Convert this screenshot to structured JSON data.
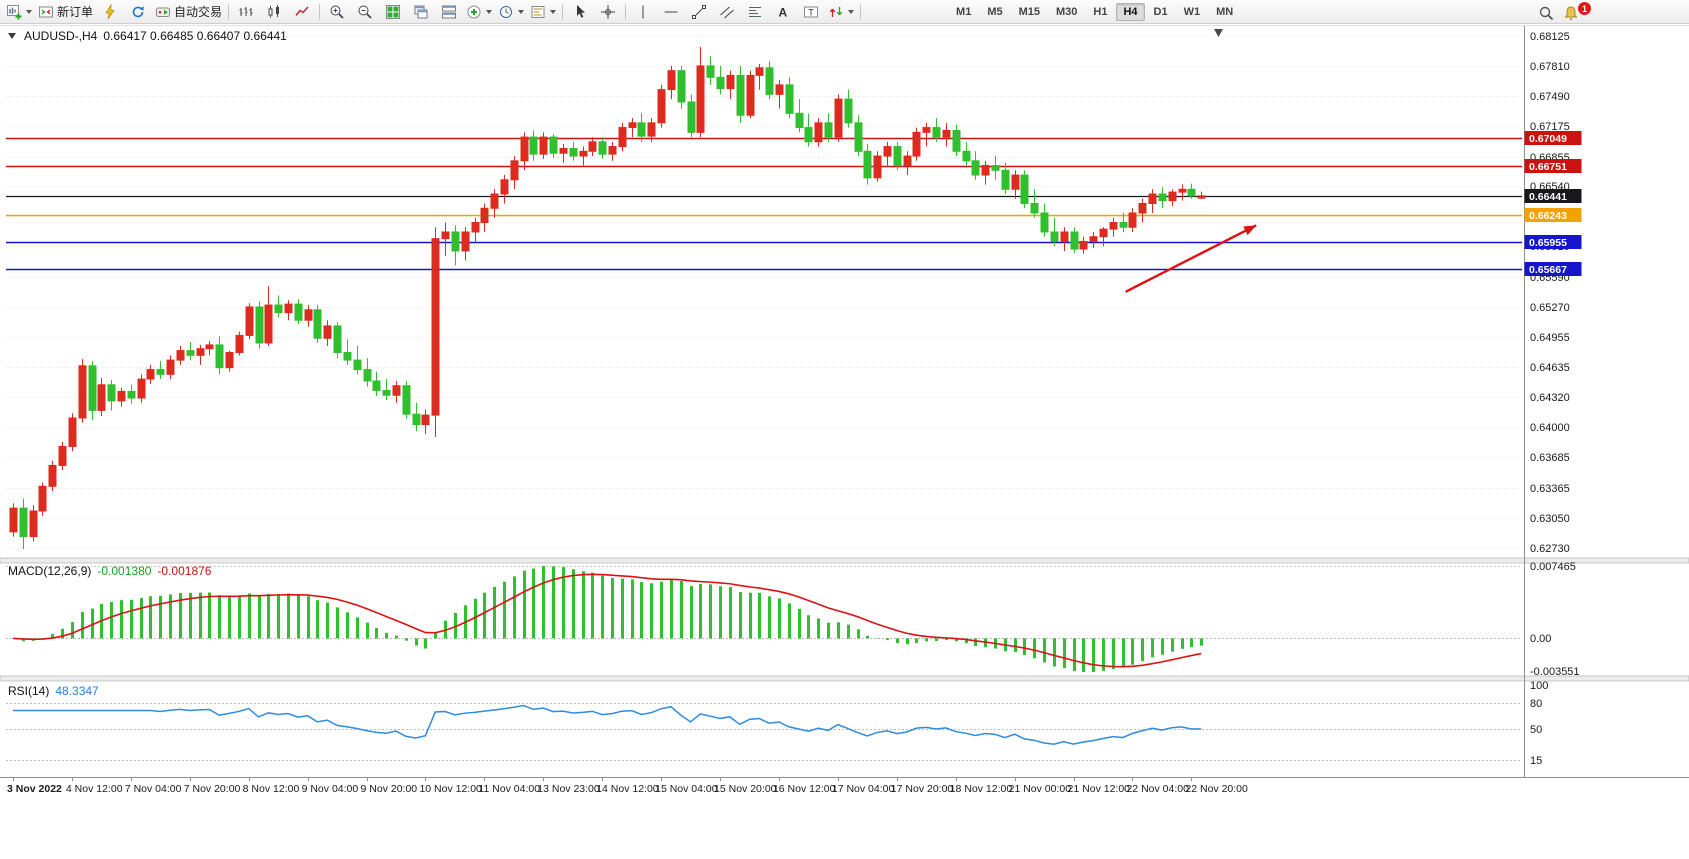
{
  "toolbar": {
    "buttons": {
      "new_order": "新订单",
      "autotrading": "自动交易"
    },
    "timeframes": [
      "M1",
      "M5",
      "M15",
      "M30",
      "H1",
      "H4",
      "D1",
      "W1",
      "MN"
    ],
    "active_timeframe": "H4",
    "notification_count": "1"
  },
  "chart": {
    "symbol_period": "AUDUSD-,H4",
    "ohlc": "0.66417 0.66485 0.66407 0.66441",
    "macd_label": "MACD(12,26,9)",
    "macd_value": "-0.001380",
    "macd_signal_value": "-0.001876",
    "rsi_label": "RSI(14)",
    "rsi_value": "48.3347"
  },
  "chart_data": {
    "type": "candlestick",
    "symbol": "AUDUSD-",
    "period": "H4",
    "colors": {
      "bull": "#dd2b20",
      "bear": "#2fbf2f",
      "macd_hist": "#2fbf2f",
      "macd_signal": "#dd1111",
      "rsi_line": "#2e8be0",
      "grid": "#dedede",
      "red_line": "#cc1111",
      "blue_line": "#1515cc",
      "orange_line": "#f2a300",
      "black_line": "#17171c",
      "arrow": "#e01010"
    },
    "price_axis_labels": [
      "0.68125",
      "0.67810",
      "0.67490",
      "0.67175",
      "0.66855",
      "0.66540",
      "0.66225",
      "0.65910",
      "0.65590",
      "0.65270",
      "0.64955",
      "0.64635",
      "0.64320",
      "0.64000",
      "0.63685",
      "0.63365",
      "0.63050",
      "0.62730"
    ],
    "price_axis_range": [
      0.6273,
      0.68125
    ],
    "hlines": [
      {
        "price": 0.67049,
        "label": "0.67049",
        "color": "#cc1111"
      },
      {
        "price": 0.66751,
        "label": "0.66751",
        "color": "#cc1111"
      },
      {
        "price": 0.66441,
        "label": "0.66441",
        "color": "#17171c"
      },
      {
        "price": 0.66243,
        "label": "0.66243",
        "color": "#f2a300"
      },
      {
        "price": 0.65955,
        "label": "0.65955",
        "color": "#1515cc"
      },
      {
        "price": 0.65667,
        "label": "0.65667",
        "color": "#1515cc"
      }
    ],
    "time_labels": [
      "3 Nov 2022",
      "4 Nov 12:00",
      "7 Nov 04:00",
      "7 Nov 20:00",
      "8 Nov 12:00",
      "9 Nov 04:00",
      "9 Nov 20:00",
      "10 Nov 12:00",
      "11 Nov 04:00",
      "13 Nov 23:00",
      "14 Nov 12:00",
      "15 Nov 04:00",
      "15 Nov 20:00",
      "16 Nov 12:00",
      "17 Nov 04:00",
      "17 Nov 20:00",
      "18 Nov 12:00",
      "21 Nov 00:00",
      "21 Nov 12:00",
      "22 Nov 04:00",
      "22 Nov 20:00"
    ],
    "bars_per_time_label": 6,
    "macd": {
      "params": "12,26,9",
      "axis_labels": [
        "0.007465",
        "0.00",
        "-0.003551"
      ]
    },
    "rsi": {
      "params": "14",
      "levels": [
        80,
        50,
        15
      ],
      "axis_labels": [
        "100",
        "80",
        "50",
        "15"
      ],
      "axis_values": [
        100,
        80,
        50,
        15
      ]
    },
    "trend_arrow": {
      "from_bar": 113.3,
      "from_price": 0.6543,
      "to_bar": 126.6,
      "to_price": 0.6613
    },
    "candles": [
      [
        0.629,
        0.632,
        0.6285,
        0.6315
      ],
      [
        0.6315,
        0.6325,
        0.6272,
        0.6285
      ],
      [
        0.6285,
        0.6318,
        0.628,
        0.6312
      ],
      [
        0.6312,
        0.6342,
        0.6307,
        0.6338
      ],
      [
        0.6338,
        0.6365,
        0.6333,
        0.636
      ],
      [
        0.636,
        0.6385,
        0.6355,
        0.638
      ],
      [
        0.638,
        0.6415,
        0.6375,
        0.641
      ],
      [
        0.641,
        0.6472,
        0.6405,
        0.6465
      ],
      [
        0.6465,
        0.647,
        0.6408,
        0.6418
      ],
      [
        0.6418,
        0.6452,
        0.6412,
        0.6445
      ],
      [
        0.6445,
        0.645,
        0.6418,
        0.6428
      ],
      [
        0.6428,
        0.6442,
        0.6422,
        0.6438
      ],
      [
        0.6438,
        0.6445,
        0.6425,
        0.6431
      ],
      [
        0.6431,
        0.6456,
        0.6426,
        0.6451
      ],
      [
        0.6451,
        0.6466,
        0.6446,
        0.6461
      ],
      [
        0.6461,
        0.647,
        0.6451,
        0.6456
      ],
      [
        0.6456,
        0.6476,
        0.6451,
        0.6471
      ],
      [
        0.6471,
        0.6486,
        0.6466,
        0.6481
      ],
      [
        0.6481,
        0.649,
        0.6471,
        0.6476
      ],
      [
        0.6476,
        0.6487,
        0.6466,
        0.6483
      ],
      [
        0.6483,
        0.6491,
        0.6476,
        0.6487
      ],
      [
        0.6487,
        0.6496,
        0.6456,
        0.6463
      ],
      [
        0.6463,
        0.6481,
        0.6459,
        0.6479
      ],
      [
        0.6479,
        0.6501,
        0.6476,
        0.6497
      ],
      [
        0.6497,
        0.6531,
        0.6493,
        0.6527
      ],
      [
        0.6527,
        0.6533,
        0.6483,
        0.6489
      ],
      [
        0.6489,
        0.6549,
        0.6486,
        0.6529
      ],
      [
        0.6529,
        0.6539,
        0.6516,
        0.6521
      ],
      [
        0.6521,
        0.6534,
        0.6513,
        0.653
      ],
      [
        0.653,
        0.6535,
        0.6509,
        0.6513
      ],
      [
        0.6513,
        0.6529,
        0.6506,
        0.6524
      ],
      [
        0.6524,
        0.6529,
        0.6489,
        0.6494
      ],
      [
        0.6494,
        0.6513,
        0.6486,
        0.6507
      ],
      [
        0.6507,
        0.6511,
        0.6473,
        0.6479
      ],
      [
        0.6479,
        0.6493,
        0.6466,
        0.6471
      ],
      [
        0.6471,
        0.6486,
        0.6456,
        0.6461
      ],
      [
        0.6461,
        0.6473,
        0.6443,
        0.6449
      ],
      [
        0.6449,
        0.6459,
        0.6433,
        0.6439
      ],
      [
        0.6439,
        0.6451,
        0.6429,
        0.6434
      ],
      [
        0.6434,
        0.6449,
        0.6426,
        0.6444
      ],
      [
        0.6444,
        0.6449,
        0.6409,
        0.6414
      ],
      [
        0.6414,
        0.6426,
        0.6396,
        0.6403
      ],
      [
        0.6403,
        0.6419,
        0.6393,
        0.6413
      ],
      [
        0.6413,
        0.6611,
        0.639,
        0.6599
      ],
      [
        0.6599,
        0.6616,
        0.6581,
        0.6606
      ],
      [
        0.6606,
        0.6613,
        0.6571,
        0.6586
      ],
      [
        0.6586,
        0.6611,
        0.6576,
        0.6606
      ],
      [
        0.6606,
        0.6621,
        0.6596,
        0.6616
      ],
      [
        0.6616,
        0.6636,
        0.6606,
        0.6631
      ],
      [
        0.6631,
        0.6651,
        0.6621,
        0.6646
      ],
      [
        0.6646,
        0.6666,
        0.6636,
        0.6661
      ],
      [
        0.6661,
        0.6686,
        0.6651,
        0.6681
      ],
      [
        0.6681,
        0.6711,
        0.6671,
        0.6706
      ],
      [
        0.6706,
        0.6713,
        0.6681,
        0.6688
      ],
      [
        0.6688,
        0.6711,
        0.6683,
        0.6706
      ],
      [
        0.6706,
        0.6709,
        0.6684,
        0.6689
      ],
      [
        0.6689,
        0.6699,
        0.6679,
        0.6694
      ],
      [
        0.6694,
        0.6701,
        0.6681,
        0.6686
      ],
      [
        0.6686,
        0.6696,
        0.6676,
        0.6691
      ],
      [
        0.6691,
        0.6706,
        0.6686,
        0.6701
      ],
      [
        0.6701,
        0.6706,
        0.6683,
        0.6688
      ],
      [
        0.6688,
        0.6701,
        0.6681,
        0.6696
      ],
      [
        0.6696,
        0.6721,
        0.6691,
        0.6716
      ],
      [
        0.6716,
        0.6726,
        0.6706,
        0.6721
      ],
      [
        0.6721,
        0.6731,
        0.6701,
        0.6707
      ],
      [
        0.6707,
        0.6726,
        0.6701,
        0.6721
      ],
      [
        0.6721,
        0.6761,
        0.6716,
        0.6756
      ],
      [
        0.6756,
        0.6781,
        0.6746,
        0.6776
      ],
      [
        0.6776,
        0.6781,
        0.6736,
        0.6743
      ],
      [
        0.6743,
        0.6751,
        0.6706,
        0.6711
      ],
      [
        0.6711,
        0.6801,
        0.6706,
        0.6781
      ],
      [
        0.6781,
        0.6791,
        0.6761,
        0.6769
      ],
      [
        0.6769,
        0.6781,
        0.6751,
        0.6757
      ],
      [
        0.6757,
        0.6776,
        0.6746,
        0.6771
      ],
      [
        0.6771,
        0.6781,
        0.6721,
        0.6729
      ],
      [
        0.6729,
        0.6776,
        0.6726,
        0.6771
      ],
      [
        0.6771,
        0.6783,
        0.6756,
        0.6779
      ],
      [
        0.6779,
        0.6786,
        0.6746,
        0.6751
      ],
      [
        0.6751,
        0.6766,
        0.6736,
        0.6761
      ],
      [
        0.6761,
        0.6769,
        0.6726,
        0.6731
      ],
      [
        0.6731,
        0.6746,
        0.6711,
        0.6716
      ],
      [
        0.6716,
        0.6731,
        0.6696,
        0.6701
      ],
      [
        0.6701,
        0.6726,
        0.6696,
        0.6721
      ],
      [
        0.6721,
        0.6731,
        0.6701,
        0.6706
      ],
      [
        0.6706,
        0.6751,
        0.6701,
        0.6746
      ],
      [
        0.6746,
        0.6756,
        0.6716,
        0.6721
      ],
      [
        0.6721,
        0.6729,
        0.6686,
        0.6691
      ],
      [
        0.6691,
        0.6699,
        0.6656,
        0.6663
      ],
      [
        0.6663,
        0.6691,
        0.6659,
        0.6686
      ],
      [
        0.6686,
        0.6701,
        0.6676,
        0.6696
      ],
      [
        0.6696,
        0.6701,
        0.6671,
        0.6676
      ],
      [
        0.6676,
        0.6691,
        0.6666,
        0.6686
      ],
      [
        0.6686,
        0.6716,
        0.6681,
        0.6711
      ],
      [
        0.6711,
        0.6721,
        0.6696,
        0.6716
      ],
      [
        0.6716,
        0.6726,
        0.6701,
        0.6706
      ],
      [
        0.6706,
        0.6721,
        0.6696,
        0.6713
      ],
      [
        0.6713,
        0.6719,
        0.6686,
        0.6691
      ],
      [
        0.6691,
        0.6701,
        0.6676,
        0.6681
      ],
      [
        0.6681,
        0.6691,
        0.6661,
        0.6666
      ],
      [
        0.6666,
        0.6681,
        0.6656,
        0.6676
      ],
      [
        0.6676,
        0.6686,
        0.6661,
        0.6671
      ],
      [
        0.6671,
        0.6679,
        0.6646,
        0.6651
      ],
      [
        0.6651,
        0.6671,
        0.6641,
        0.6666
      ],
      [
        0.6666,
        0.6671,
        0.6631,
        0.6636
      ],
      [
        0.6636,
        0.6651,
        0.6621,
        0.6626
      ],
      [
        0.6626,
        0.6636,
        0.6601,
        0.6606
      ],
      [
        0.6606,
        0.6621,
        0.6591,
        0.6596
      ],
      [
        0.6596,
        0.6611,
        0.6586,
        0.6606
      ],
      [
        0.6606,
        0.6611,
        0.6584,
        0.6588
      ],
      [
        0.6588,
        0.6601,
        0.6583,
        0.6596
      ],
      [
        0.6596,
        0.6606,
        0.6589,
        0.6601
      ],
      [
        0.6601,
        0.6611,
        0.6591,
        0.6609
      ],
      [
        0.6609,
        0.6621,
        0.6601,
        0.6616
      ],
      [
        0.6616,
        0.6626,
        0.6606,
        0.6611
      ],
      [
        0.6611,
        0.6631,
        0.6606,
        0.6626
      ],
      [
        0.6626,
        0.6641,
        0.6616,
        0.6636
      ],
      [
        0.6636,
        0.6651,
        0.6626,
        0.6646
      ],
      [
        0.6646,
        0.6653,
        0.6631,
        0.6639
      ],
      [
        0.6639,
        0.6651,
        0.6633,
        0.6648
      ],
      [
        0.6648,
        0.6656,
        0.6639,
        0.6651
      ],
      [
        0.6651,
        0.6657,
        0.6641,
        0.6644
      ],
      [
        0.66417,
        0.66485,
        0.66407,
        0.66441
      ]
    ]
  }
}
